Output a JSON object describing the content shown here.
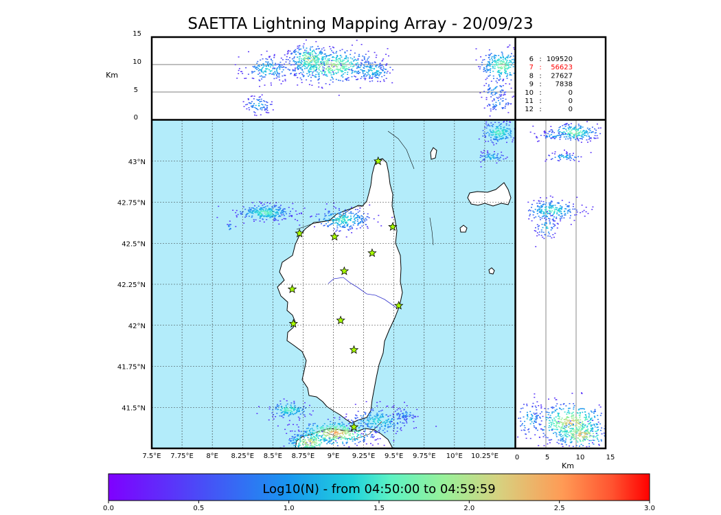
{
  "title": "SAETTA Lightning Mapping Array - 20/09/23",
  "map": {
    "lon_ticks": [
      "7.5°E",
      "7.75°E",
      "8°E",
      "8.25°E",
      "8.5°E",
      "8.75°E",
      "9°E",
      "9.25°E",
      "9.5°E",
      "9.75°E",
      "10°E",
      "10.25°E"
    ],
    "lat_ticks": [
      "43°N",
      "42.75°N",
      "42.5°N",
      "42.25°N",
      "42°N",
      "41.75°N",
      "41.5°N"
    ],
    "lon_range": [
      7.5,
      10.5
    ],
    "lat_range": [
      41.25,
      43.25
    ],
    "land_color": "#ffffff",
    "sea_color": "#b3ecfa",
    "station_color": "#a8ff00"
  },
  "altitude_panel": {
    "ylabel": "Km",
    "yticks": [
      "15",
      "10",
      "5",
      "0"
    ]
  },
  "side_panel": {
    "xlabel": "Km",
    "xticks": [
      "0",
      "5",
      "10",
      "15"
    ]
  },
  "counts": [
    {
      "label": "6",
      "value": "109520",
      "highlight": false
    },
    {
      "label": "7",
      "value": "56623",
      "highlight": true
    },
    {
      "label": "8",
      "value": "27627",
      "highlight": false
    },
    {
      "label": "9",
      "value": "7838",
      "highlight": false
    },
    {
      "label": "10",
      "value": "0",
      "highlight": false
    },
    {
      "label": "11",
      "value": "0",
      "highlight": false
    },
    {
      "label": "12",
      "value": "0",
      "highlight": false
    }
  ],
  "count_sep": ":",
  "highlight_color": "#ff0000",
  "colorbar": {
    "label": "Log10(N) - from 04:50:00 to 04:59:59",
    "ticks": [
      "0.0",
      "0.5",
      "1.0",
      "1.5",
      "2.0",
      "2.5",
      "3.0"
    ],
    "range": [
      0.0,
      3.0
    ]
  },
  "stations": [
    {
      "lon": 9.37,
      "lat": 43.0
    },
    {
      "lon": 9.49,
      "lat": 42.6
    },
    {
      "lon": 8.72,
      "lat": 42.56
    },
    {
      "lon": 9.01,
      "lat": 42.54
    },
    {
      "lon": 9.32,
      "lat": 42.44
    },
    {
      "lon": 9.09,
      "lat": 42.33
    },
    {
      "lon": 8.66,
      "lat": 42.22
    },
    {
      "lon": 9.54,
      "lat": 42.12
    },
    {
      "lon": 9.06,
      "lat": 42.03
    },
    {
      "lon": 8.67,
      "lat": 42.01
    },
    {
      "lon": 9.17,
      "lat": 41.85
    },
    {
      "lon": 9.17,
      "lat": 41.38
    }
  ]
}
